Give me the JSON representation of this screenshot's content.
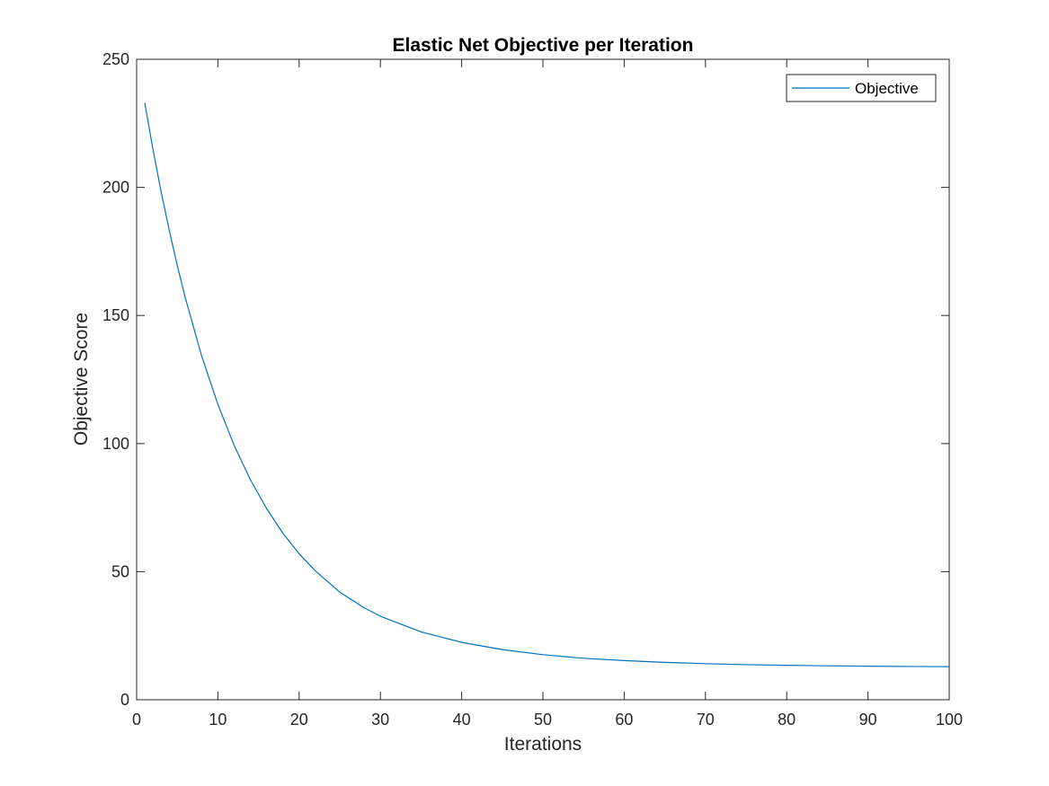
{
  "chart_data": {
    "type": "line",
    "title": "Elastic Net Objective per Iteration",
    "xlabel": "Iterations",
    "ylabel": "Objective Score",
    "xlim": [
      0,
      100
    ],
    "ylim": [
      0,
      250
    ],
    "xticks": [
      0,
      10,
      20,
      30,
      40,
      50,
      60,
      70,
      80,
      90,
      100
    ],
    "yticks": [
      0,
      50,
      100,
      150,
      200,
      250
    ],
    "grid": false,
    "legend": {
      "position": "top-right",
      "entries": [
        "Objective"
      ]
    },
    "series": [
      {
        "name": "Objective",
        "color": "#0072BD",
        "x": [
          1,
          2,
          3,
          4,
          5,
          6,
          8,
          10,
          12,
          14,
          16,
          18,
          20,
          22,
          25,
          28,
          30,
          35,
          40,
          45,
          50,
          55,
          60,
          65,
          70,
          75,
          80,
          85,
          90,
          95,
          100
        ],
        "y": [
          233,
          215,
          198.5,
          183.5,
          169.5,
          156.8,
          134.2,
          115.3,
          99.3,
          85.9,
          74.6,
          65.0,
          57.0,
          50.3,
          42.0,
          35.9,
          32.6,
          26.5,
          22.4,
          19.6,
          17.6,
          16.2,
          15.3,
          14.6,
          14.1,
          13.7,
          13.45,
          13.25,
          13.1,
          13.0,
          12.9
        ]
      }
    ]
  }
}
